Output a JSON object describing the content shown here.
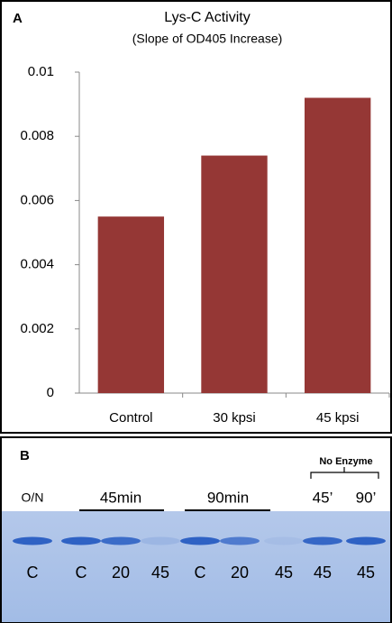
{
  "chart_data": {
    "type": "bar",
    "panel": "A",
    "title": "Lys-C Activity",
    "subtitle": "(Slope of OD405 Increase)",
    "categories": [
      "Control",
      "30 kpsi",
      "45 kpsi"
    ],
    "values": [
      0.0055,
      0.0074,
      0.0092
    ],
    "color": "#953735",
    "ylim": [
      0,
      0.01
    ],
    "yticks": [
      0,
      0.002,
      0.004,
      0.006,
      0.008,
      0.01
    ],
    "grid": false
  },
  "gel": {
    "panel": "B",
    "no_enzyme": "No Enzyme",
    "headers": [
      "O/N",
      "45min",
      "90min",
      "45’",
      "90’"
    ],
    "lanes": [
      "C",
      "C",
      "20",
      "45",
      "C",
      "20",
      "45",
      "45",
      "45"
    ]
  }
}
